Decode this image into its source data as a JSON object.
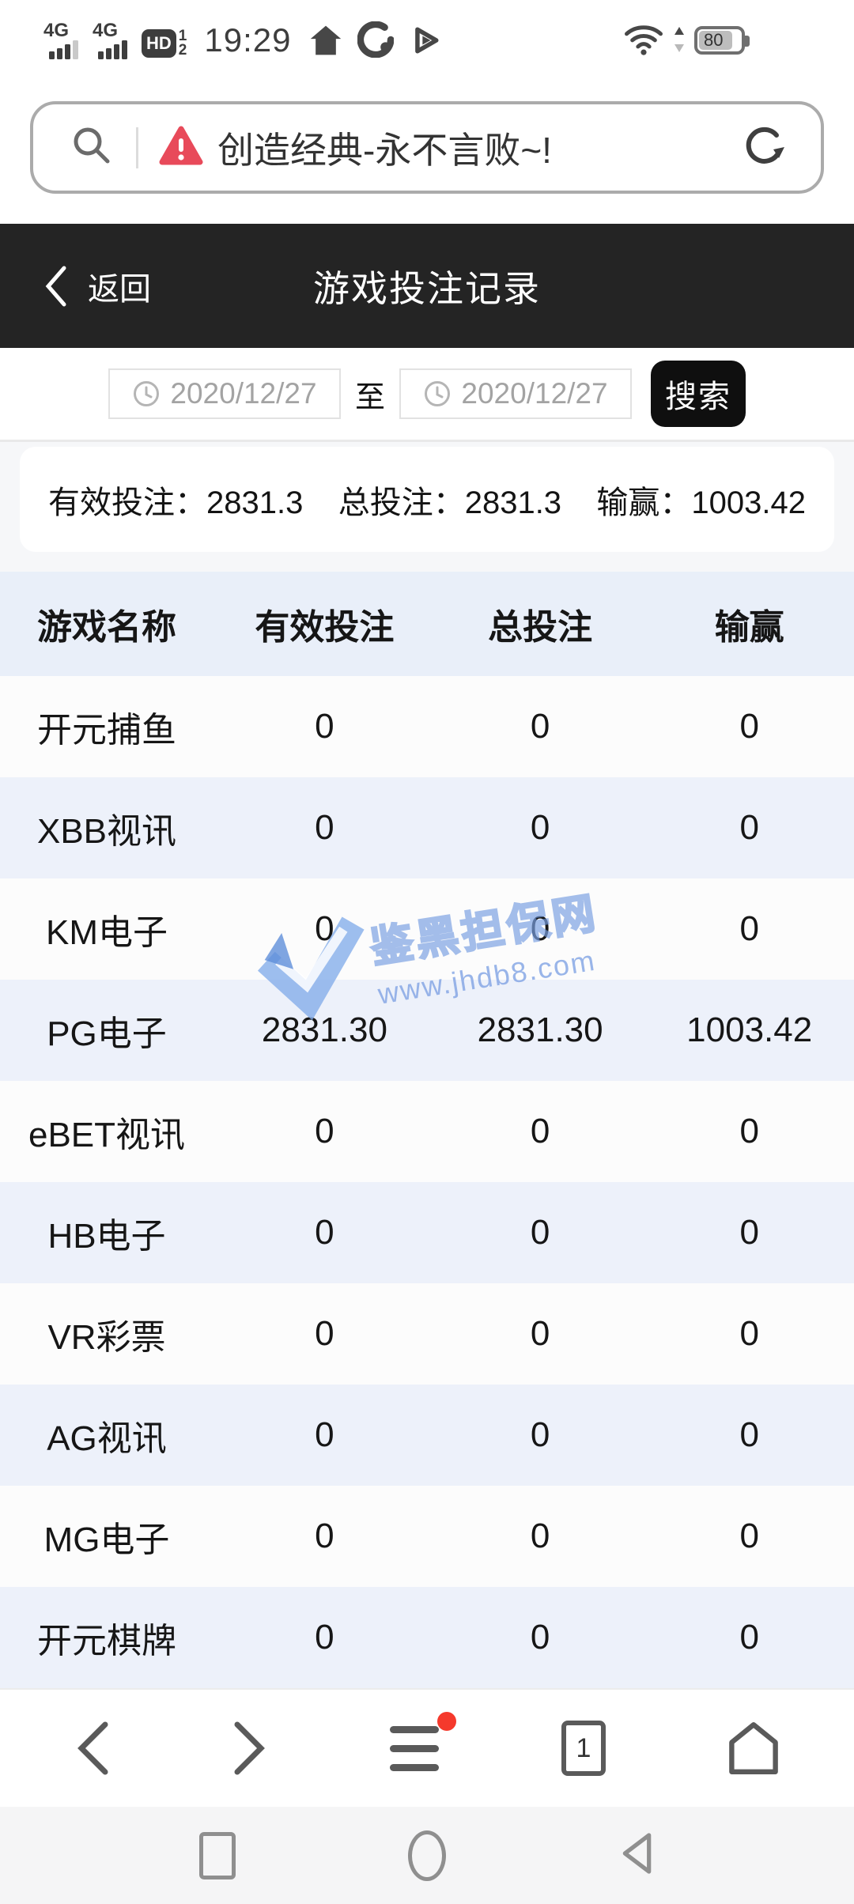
{
  "status_bar": {
    "time": "19:29",
    "battery_level": "80",
    "network1_label": "4G",
    "network2_label": "4G",
    "hd_label": "HD",
    "sim1": "1",
    "sim2": "2"
  },
  "search_bar": {
    "query": "创造经典-永不言败~!"
  },
  "page_header": {
    "back_label": "返回",
    "title": "游戏投注记录"
  },
  "filters": {
    "date_from": "2020/12/27",
    "range_separator": "至",
    "date_to": "2020/12/27",
    "search_button_label": "搜索"
  },
  "summary": {
    "items": [
      {
        "label": "有效投注：",
        "value": "2831.3"
      },
      {
        "label": "总投注：",
        "value": "2831.3"
      },
      {
        "label": "输赢：",
        "value": "1003.42"
      }
    ]
  },
  "table": {
    "columns": [
      "游戏名称",
      "有效投注",
      "总投注",
      "输赢"
    ],
    "rows": [
      [
        "开元捕鱼",
        "0",
        "0",
        "0"
      ],
      [
        "XBB视讯",
        "0",
        "0",
        "0"
      ],
      [
        "KM电子",
        "0",
        "0",
        "0"
      ],
      [
        "PG电子",
        "2831.30",
        "2831.30",
        "1003.42"
      ],
      [
        "eBET视讯",
        "0",
        "0",
        "0"
      ],
      [
        "HB电子",
        "0",
        "0",
        "0"
      ],
      [
        "VR彩票",
        "0",
        "0",
        "0"
      ],
      [
        "AG视讯",
        "0",
        "0",
        "0"
      ],
      [
        "MG电子",
        "0",
        "0",
        "0"
      ],
      [
        "开元棋牌",
        "0",
        "0",
        "0"
      ]
    ]
  },
  "watermark": {
    "site_name": "鉴黑担保网",
    "site_url": "www.jhdb8.com"
  },
  "browser_toolbar": {
    "tab_count": "1"
  },
  "colors": {
    "header_dark": "#242424",
    "table_header_bg": "#e9eff9",
    "row_alt_bg": "#edf1fa",
    "warning_red": "#e84a5a",
    "badge_red": "#f5392c",
    "watermark_blue": "#7ba6e8"
  }
}
